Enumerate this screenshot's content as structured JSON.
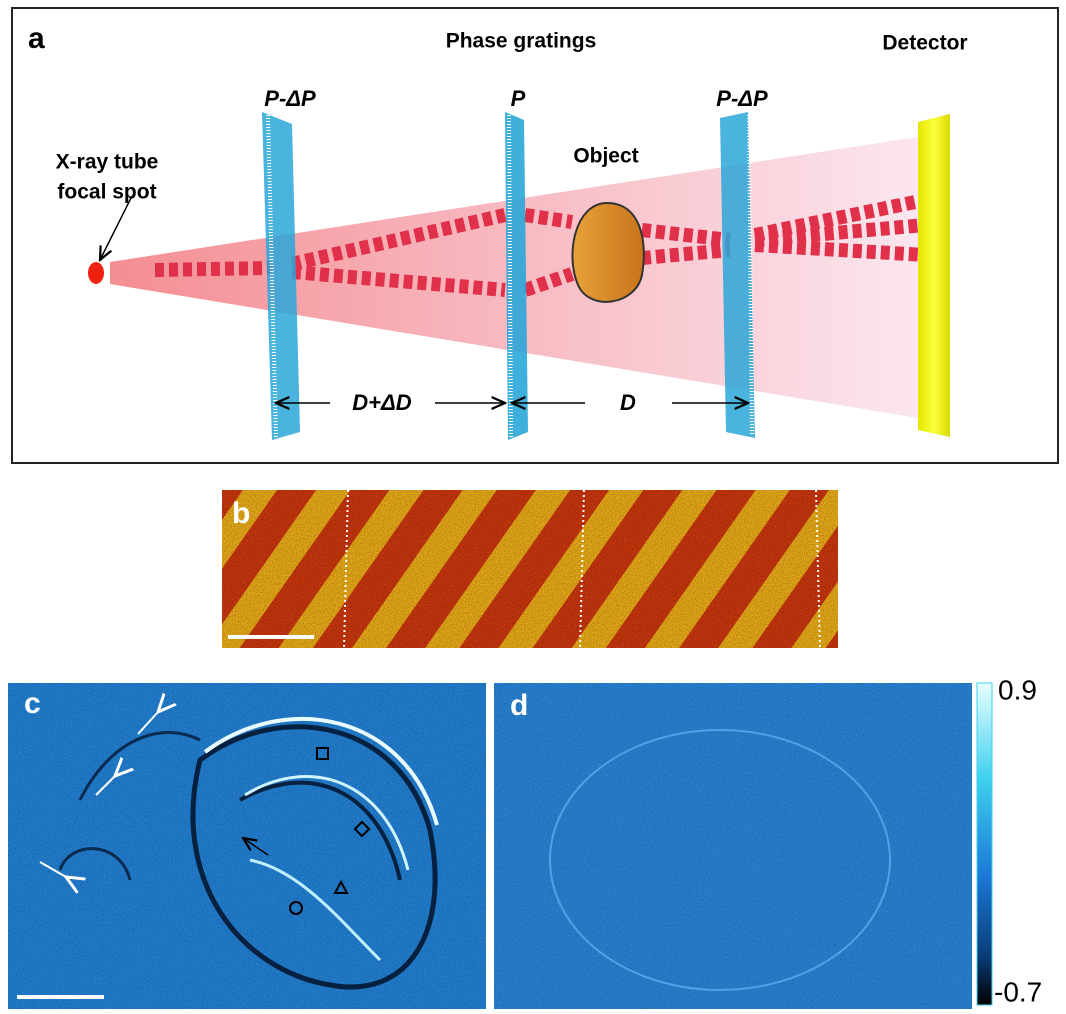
{
  "panel_a": {
    "label": "a",
    "title": "Phase gratings",
    "detector": "Detector",
    "source": [
      "X-ray tube",
      "focal spot"
    ],
    "gratings": [
      "P-ΔP",
      "P",
      "P-ΔP"
    ],
    "object": "Object",
    "distances": [
      "D+ΔD",
      "D"
    ]
  },
  "panel_b": {
    "label": "b"
  },
  "panel_c": {
    "label": "c"
  },
  "panel_d": {
    "label": "d"
  },
  "colorbar": {
    "max": 0.9,
    "min": -0.7
  }
}
